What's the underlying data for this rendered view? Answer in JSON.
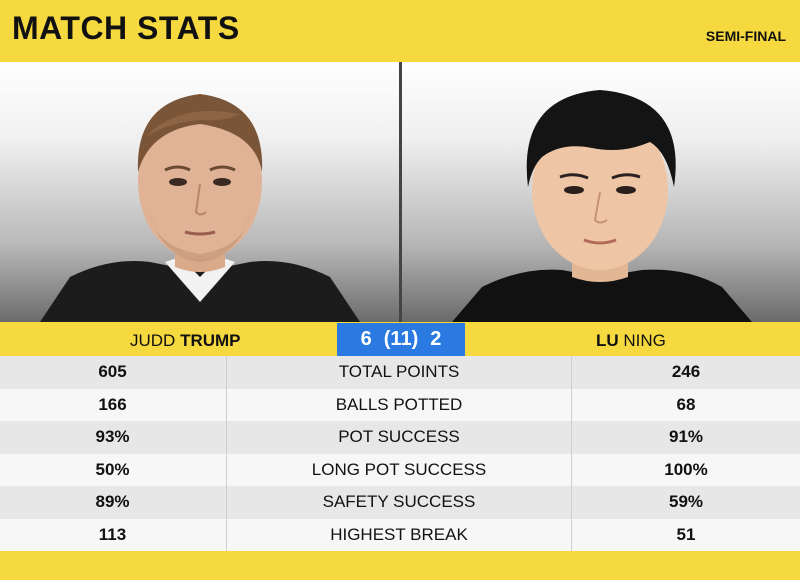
{
  "header": {
    "title": "MATCH STATS",
    "round": "SEMI-FINAL"
  },
  "players": {
    "left": {
      "first": "JUDD",
      "last": "TRUMP"
    },
    "right": {
      "first": "LU",
      "last": "NING"
    }
  },
  "score": {
    "left": "6",
    "best_of": "(11)",
    "right": "2"
  },
  "stats": [
    {
      "left": "605",
      "label": "TOTAL POINTS",
      "right": "246"
    },
    {
      "left": "166",
      "label": "BALLS POTTED",
      "right": "68"
    },
    {
      "left": "93%",
      "label": "POT SUCCESS",
      "right": "91%"
    },
    {
      "left": "50%",
      "label": "LONG POT SUCCESS",
      "right": "100%"
    },
    {
      "left": "89%",
      "label": "SAFETY SUCCESS",
      "right": "59%"
    },
    {
      "left": "113",
      "label": "HIGHEST BREAK",
      "right": "51"
    }
  ],
  "colors": {
    "accent_yellow": "#f5d93f",
    "score_blue": "#2a7ae2"
  }
}
